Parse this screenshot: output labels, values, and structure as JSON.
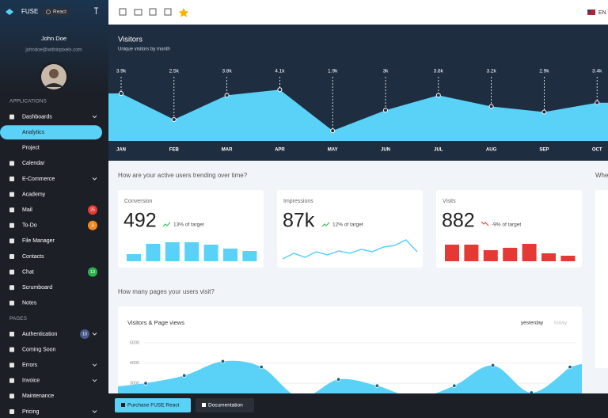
{
  "sidebar": {
    "brand": "FUSE",
    "badge": "React",
    "user_name": "John Doe",
    "user_email": "johndoe@withinpixels.com",
    "sections": [
      {
        "title": "APPLICATIONS",
        "items": [
          {
            "label": "Dashboards",
            "expandable": true
          },
          {
            "label": "Analytics",
            "sub": true,
            "active": true
          },
          {
            "label": "Project",
            "sub": true
          },
          {
            "label": "Calendar"
          },
          {
            "label": "E-Commerce",
            "expandable": true
          },
          {
            "label": "Academy"
          },
          {
            "label": "Mail",
            "badge": 25,
            "badge_color": "#e53935"
          },
          {
            "label": "To-Do",
            "badge": 3,
            "badge_color": "#f28b1f"
          },
          {
            "label": "File Manager"
          },
          {
            "label": "Contacts"
          },
          {
            "label": "Chat",
            "badge": 13,
            "badge_color": "#2bb24c"
          },
          {
            "label": "Scrumboard"
          },
          {
            "label": "Notes"
          }
        ]
      },
      {
        "title": "PAGES",
        "items": [
          {
            "label": "Authentication",
            "badge": 10,
            "badge_color": "#4a5a8c",
            "expandable": true
          },
          {
            "label": "Coming Soon"
          },
          {
            "label": "Errors",
            "expandable": true
          },
          {
            "label": "Invoice",
            "expandable": true
          },
          {
            "label": "Maintenance"
          },
          {
            "label": "Pricing",
            "expandable": true
          }
        ]
      }
    ]
  },
  "topbar": {
    "language": "EN"
  },
  "visitors": {
    "type": "area",
    "title": "Visitors",
    "subtitle": "Unique visitors by month",
    "categories": [
      "JAN",
      "FEB",
      "MAR",
      "APR",
      "MAY",
      "JUN",
      "JUL",
      "AUG",
      "SEP",
      "OCT"
    ],
    "values": [
      3900,
      2500,
      3800,
      4100,
      1900,
      3000,
      3800,
      3200,
      2900,
      3400
    ],
    "value_labels": [
      "3.9k",
      "2.5k",
      "3.8k",
      "4.1k",
      "1.9k",
      "3k",
      "3.8k",
      "3.2k",
      "2.9k",
      "3.4k"
    ],
    "color": "#5ad1f7"
  },
  "trend_heading": "How are your active users trending over time?",
  "side_heading": "Whe",
  "cards": [
    {
      "title": "Conversion",
      "value": 492,
      "change": "13% of target",
      "trend": "up",
      "type": "bar",
      "values": [
        9,
        22,
        24,
        24,
        21,
        16,
        13
      ],
      "color": "#5ad1f7"
    },
    {
      "title": "Impressions",
      "value": "87k",
      "change": "12% of target",
      "trend": "up",
      "type": "line",
      "values": [
        3,
        10,
        5,
        12,
        8,
        13,
        10,
        15,
        12,
        18,
        20,
        27,
        12
      ],
      "color": "#5ad1f7"
    },
    {
      "title": "Visits",
      "value": 882,
      "change": "-9% of target",
      "trend": "down",
      "type": "bar",
      "values": [
        21,
        21,
        14,
        17,
        22,
        10,
        7
      ],
      "color": "#e53935"
    }
  ],
  "pages_heading": "How many pages your users visit?",
  "pages_chart": {
    "type": "area",
    "title": "Visitors & Page views",
    "tabs": [
      "yesterday",
      "today"
    ],
    "values": [
      3000,
      3380,
      4080,
      3800,
      2300,
      3190,
      2880,
      2300,
      2880,
      3880,
      2540,
      3800
    ],
    "ylim": [
      2500,
      5500
    ],
    "yticks": [
      5000,
      4000,
      3000
    ],
    "color": "#5ad1f7"
  },
  "footer": {
    "buttons": [
      "Purchase FUSE React",
      "Documentation"
    ]
  }
}
